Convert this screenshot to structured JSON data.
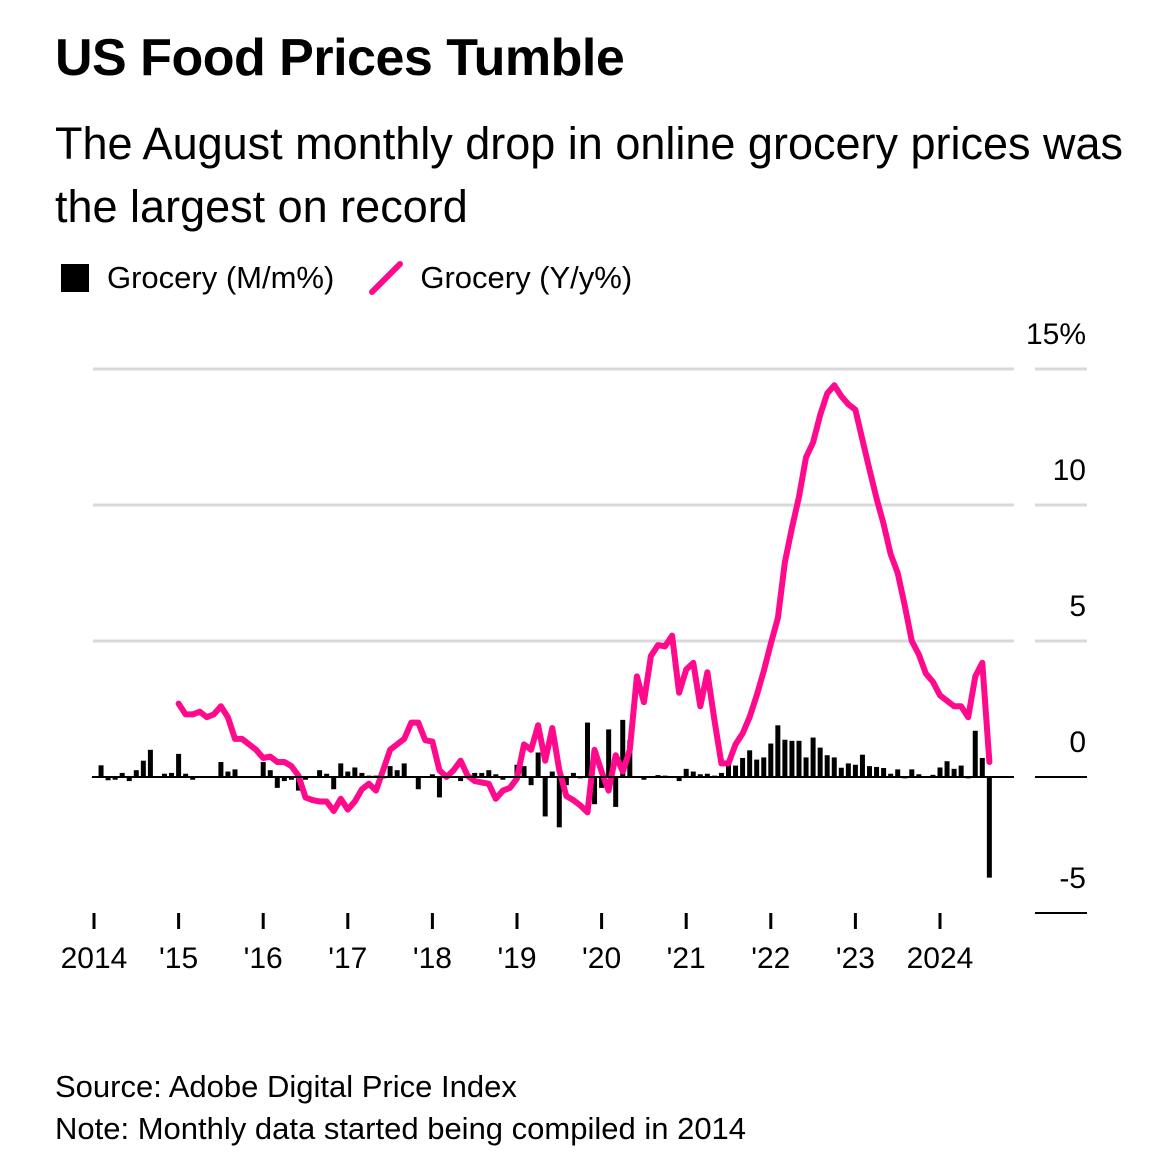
{
  "title": "US Food Prices Tumble",
  "subtitle": "The August monthly drop in online grocery prices was the largest on record",
  "legend": [
    {
      "label": "Grocery (M/m%)",
      "color": "#000000",
      "shape": "square"
    },
    {
      "label": "Grocery (Y/y%)",
      "color": "#ff0a8c",
      "shape": "line"
    }
  ],
  "source": "Source: Adobe Digital Price Index",
  "note": "Note: Monthly data started being compiled in 2014",
  "chart_data": {
    "type": "bar+line",
    "title": "US Food Prices Tumble",
    "x_tick_labels": [
      "2014",
      "'15",
      "'16",
      "'17",
      "'18",
      "'19",
      "'20",
      "'21",
      "'22",
      "'23",
      "2024"
    ],
    "y_tick_labels": [
      "15%",
      "10",
      "5",
      "0",
      "-5"
    ],
    "y_ticks": [
      15,
      10,
      5,
      0,
      -5
    ],
    "ylim": [
      -5,
      15
    ],
    "grid": true,
    "legend_placement": "top-left",
    "x_start_year": 2014,
    "series": [
      {
        "name": "Grocery (M/m%)",
        "type": "bar",
        "color": "#000000",
        "values": [
          0,
          0.43,
          -0.12,
          -0.1,
          0.15,
          -0.15,
          0.25,
          0.6,
          1.0,
          0.03,
          0.12,
          0.15,
          0.85,
          0.12,
          -0.1,
          -0.03,
          -0.03,
          -0.03,
          0.55,
          0.2,
          0.28,
          0,
          -0.03,
          0,
          0.55,
          0.25,
          -0.4,
          -0.15,
          -0.1,
          -0.5,
          -0.1,
          0.02,
          0.25,
          0.12,
          -0.45,
          0.5,
          0.2,
          0.35,
          0.15,
          0.05,
          0.05,
          -0.05,
          0.4,
          0.25,
          0.5,
          0,
          -0.45,
          0,
          0.1,
          -0.75,
          0,
          0,
          -0.15,
          0.1,
          0.15,
          0.15,
          0.25,
          0.1,
          -0.1,
          0,
          0.45,
          0.4,
          -0.3,
          0.9,
          -1.45,
          0.2,
          -1.85,
          -0.3,
          0.15,
          -0.05,
          2.0,
          -1.0,
          -0.4,
          1.75,
          -1.1,
          2.1,
          1.35,
          0.03,
          -0.1,
          0.03,
          0.07,
          0.05,
          0,
          -0.15,
          0.3,
          0.2,
          0.1,
          0.12,
          0.05,
          0.15,
          0.6,
          0.42,
          0.7,
          0.98,
          0.64,
          0.72,
          1.23,
          1.9,
          1.37,
          1.33,
          1.33,
          0.72,
          1.45,
          1.08,
          0.8,
          0.72,
          0.34,
          0.5,
          0.45,
          0.82,
          0.4,
          0.37,
          0.33,
          0.12,
          0.28,
          -0.05,
          0.28,
          0.1,
          0.02,
          0.08,
          0.35,
          0.58,
          0.3,
          0.42,
          -0.05,
          1.7,
          0.7,
          -3.7
        ]
      },
      {
        "name": "Grocery (Y/y%)",
        "type": "line",
        "color": "#ff0a8c",
        "values": [
          null,
          null,
          null,
          null,
          null,
          null,
          null,
          null,
          null,
          null,
          null,
          null,
          2.7,
          2.3,
          2.3,
          2.4,
          2.2,
          2.3,
          2.6,
          2.2,
          1.4,
          1.4,
          1.2,
          1.0,
          0.7,
          0.75,
          0.55,
          0.55,
          0.4,
          0.05,
          -0.75,
          -0.85,
          -0.9,
          -0.9,
          -1.25,
          -0.8,
          -1.2,
          -0.9,
          -0.45,
          -0.25,
          -0.5,
          0.25,
          1.0,
          1.2,
          1.4,
          2.0,
          2.0,
          1.35,
          1.3,
          0.25,
          0,
          0.25,
          0.6,
          0.05,
          -0.15,
          -0.2,
          -0.25,
          -0.8,
          -0.5,
          -0.4,
          -0.05,
          1.2,
          1.0,
          1.9,
          0.6,
          1.8,
          0.25,
          -0.7,
          -0.85,
          -1.05,
          -1.3,
          1.0,
          0.2,
          -0.5,
          0.8,
          0.2,
          1.0,
          3.7,
          2.75,
          4.45,
          4.85,
          4.8,
          5.2,
          3.1,
          3.95,
          4.2,
          2.6,
          3.85,
          2.1,
          0.5,
          0.5,
          1.2,
          1.6,
          2.2,
          3.0,
          3.9,
          4.9,
          5.85,
          7.9,
          9.15,
          10.3,
          11.75,
          12.3,
          13.3,
          14.1,
          14.4,
          14.0,
          13.7,
          13.5,
          12.4,
          11.3,
          10.25,
          9.3,
          8.2,
          7.5,
          6.3,
          5.0,
          4.5,
          3.8,
          3.5,
          3.0,
          2.8,
          2.6,
          2.6,
          2.2,
          3.7,
          4.2,
          0.55
        ]
      }
    ]
  }
}
